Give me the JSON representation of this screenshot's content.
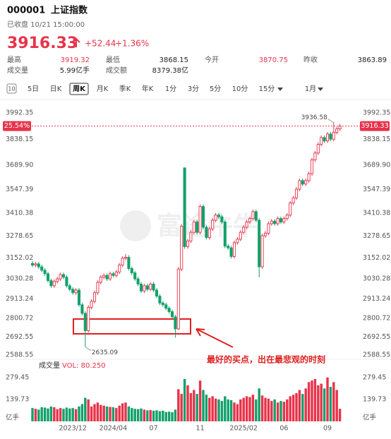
{
  "header": {
    "code": "000001",
    "name": "上证指数",
    "status": "已收盘 10/21 15:00:00",
    "price": "3916.33",
    "change": "+52.44",
    "change_pct": "+1.36%",
    "color": "#e8334a"
  },
  "stats": [
    {
      "label": "最高",
      "value": "3919.32",
      "color": "#e8334a"
    },
    {
      "label": "最低",
      "value": "3868.15",
      "color": "#222222"
    },
    {
      "label": "今开",
      "value": "3870.75",
      "color": "#e8334a"
    },
    {
      "label": "昨收",
      "value": "3863.89",
      "color": "#222222"
    },
    {
      "label": "成交量",
      "value": "5.99亿手",
      "color": "#222222"
    },
    {
      "label": "成交额",
      "value": "8379.38亿",
      "color": "#222222"
    }
  ],
  "tab_icon_label": "10",
  "tabs": [
    "5日",
    "日K",
    "周K",
    "月K",
    "季K",
    "年K",
    "1分",
    "3分",
    "5分",
    "10分",
    "15分",
    "1月"
  ],
  "active_tab": "周K",
  "chart_data": {
    "type": "candlestick",
    "up_color": "#e8334a",
    "down_color": "#14a06b",
    "grid": false,
    "watermark": "富途牛牛",
    "current_pct_label": "25.54%",
    "annotation": "最好的买点，出在最悲观的时刻",
    "categories": [
      null,
      null,
      null,
      null,
      null,
      null,
      null,
      null,
      null,
      null,
      null,
      null,
      null,
      "2023/12",
      null,
      null,
      null,
      null,
      null,
      null,
      null,
      null,
      null,
      null,
      null,
      null,
      "2024/04",
      null,
      null,
      null,
      null,
      null,
      null,
      null,
      null,
      null,
      null,
      null,
      null,
      "07",
      null,
      null,
      null,
      null,
      null,
      null,
      null,
      null,
      null,
      null,
      null,
      null,
      null,
      null,
      "11",
      null,
      null,
      null,
      null,
      null,
      null,
      null,
      null,
      null,
      null,
      null,
      null,
      null,
      "2025/02",
      null,
      null,
      null,
      null,
      null,
      null,
      null,
      null,
      null,
      null,
      null,
      null,
      "06",
      null,
      null,
      null,
      null,
      null,
      null,
      null,
      null,
      null,
      null,
      null,
      null,
      null,
      "09",
      null,
      null,
      null,
      null
    ],
    "open": [
      3120,
      3110,
      3117,
      3100,
      3080,
      3060,
      3020,
      2990,
      3015,
      3030,
      3055,
      3040,
      2990,
      2970,
      2950,
      2965,
      2880,
      2830,
      2730,
      2865,
      2900,
      2950,
      3010,
      3040,
      3050,
      3030,
      3060,
      3050,
      3070,
      3110,
      3150,
      3155,
      3090,
      3065,
      3030,
      3000,
      2960,
      2990,
      2970,
      3000,
      2965,
      2930,
      2890,
      2880,
      2860,
      2840,
      2810,
      2740,
      3087,
      3674,
      3217,
      3250,
      3300,
      3360,
      3300,
      3450,
      3330,
      3270,
      3320,
      3370,
      3400,
      3390,
      3360,
      3220,
      3210,
      3160,
      3240,
      3260,
      3300,
      3330,
      3360,
      3380,
      3420,
      3370,
      3100,
      3280,
      3295,
      3350,
      3365,
      3350,
      3380,
      3360,
      3380,
      3400,
      3470,
      3500,
      3550,
      3600,
      3580,
      3600,
      3640,
      3720,
      3760,
      3810,
      3850,
      3830,
      3870,
      3840,
      3880,
      3900
    ],
    "high": [
      3132,
      3129,
      3129,
      3112,
      3092,
      3072,
      3032,
      3027,
      3042,
      3067,
      3067,
      3052,
      3002,
      2982,
      2977,
      2977,
      2892,
      2842,
      2877,
      2912,
      2962,
      3022,
      3052,
      3062,
      3062,
      3072,
      3072,
      3082,
      3122,
      3162,
      3174,
      3167,
      3102,
      3077,
      3042,
      3012,
      3002,
      3002,
      3012,
      3012,
      2977,
      2942,
      2902,
      2892,
      2872,
      2852,
      2822,
      3099,
      3348,
      3674,
      3262,
      3312,
      3372,
      3372,
      3462,
      3462,
      3342,
      3332,
      3382,
      3412,
      3412,
      3402,
      3372,
      3232,
      3222,
      3252,
      3272,
      3312,
      3342,
      3372,
      3392,
      3432,
      3432,
      3382,
      3292,
      3307,
      3362,
      3377,
      3377,
      3392,
      3392,
      3392,
      3412,
      3482,
      3512,
      3562,
      3612,
      3612,
      3612,
      3652,
      3732,
      3772,
      3822,
      3862,
      3862,
      3882,
      3882,
      3936.58,
      3912,
      3928
    ],
    "low": [
      3098,
      3098,
      3088,
      3068,
      3048,
      3008,
      2978,
      2978,
      3003,
      3018,
      3028,
      2978,
      2958,
      2938,
      2938,
      2868,
      2818,
      2635.09,
      2718,
      2853,
      2888,
      2938,
      2998,
      3028,
      3018,
      3018,
      3038,
      3038,
      3058,
      3098,
      3138,
      3078,
      3053,
      3018,
      2988,
      2948,
      2948,
      2958,
      2958,
      2953,
      2918,
      2878,
      2868,
      2848,
      2828,
      2798,
      2689,
      2734,
      3075,
      3205,
      3205,
      3238,
      3288,
      3288,
      3288,
      3318,
      3258,
      3258,
      3308,
      3358,
      3378,
      3348,
      3208,
      3198,
      3148,
      3148,
      3228,
      3248,
      3288,
      3318,
      3348,
      3368,
      3358,
      3040,
      3088,
      3268,
      3283,
      3338,
      3338,
      3338,
      3348,
      3348,
      3368,
      3388,
      3458,
      3488,
      3538,
      3568,
      3568,
      3588,
      3628,
      3708,
      3748,
      3798,
      3818,
      3818,
      3828,
      3828,
      3868,
      3888
    ],
    "close": [
      3110,
      3117,
      3100,
      3080,
      3060,
      3020,
      2990,
      3015,
      3030,
      3055,
      3040,
      2990,
      2970,
      2950,
      2965,
      2880,
      2830,
      2730,
      2865,
      2900,
      2950,
      3010,
      3040,
      3050,
      3030,
      3060,
      3050,
      3070,
      3110,
      3150,
      3155,
      3090,
      3065,
      3030,
      3000,
      2960,
      2990,
      2970,
      3000,
      2965,
      2930,
      2890,
      2880,
      2860,
      2840,
      2810,
      2740,
      3087,
      3336,
      3217,
      3250,
      3300,
      3360,
      3300,
      3450,
      3330,
      3270,
      3320,
      3370,
      3400,
      3390,
      3360,
      3220,
      3210,
      3160,
      3240,
      3260,
      3300,
      3330,
      3360,
      3380,
      3420,
      3370,
      3100,
      3280,
      3295,
      3350,
      3365,
      3350,
      3380,
      3360,
      3380,
      3400,
      3470,
      3500,
      3550,
      3600,
      3580,
      3600,
      3640,
      3720,
      3760,
      3810,
      3850,
      3830,
      3870,
      3840,
      3880,
      3900,
      3916.33
    ],
    "ylim": [
      2588.55,
      3992.35
    ],
    "yticks": [
      3992.35,
      3838.15,
      {
        "value": 3689.9,
        "label": "3689.90"
      },
      3547.39,
      3410.38,
      3278.65,
      3152.02,
      3030.28,
      2913.24,
      2800.72,
      2692.55,
      2588.55
    ],
    "volume": {
      "label": "成交量",
      "caption": "VOL: 80.250",
      "values": [
        85,
        80,
        75,
        90,
        88,
        82,
        95,
        90,
        78,
        85,
        80,
        88,
        82,
        85,
        78,
        95,
        110,
        150,
        140,
        95,
        110,
        120,
        105,
        100,
        95,
        92,
        90,
        85,
        100,
        115,
        120,
        95,
        85,
        80,
        78,
        82,
        75,
        70,
        72,
        68,
        70,
        65,
        68,
        60,
        62,
        58,
        75,
        205,
        175,
        270,
        230,
        180,
        200,
        175,
        260,
        200,
        170,
        150,
        160,
        145,
        140,
        130,
        160,
        140,
        135,
        120,
        110,
        140,
        150,
        160,
        155,
        170,
        140,
        210,
        165,
        150,
        145,
        130,
        140,
        120,
        130,
        125,
        140,
        160,
        170,
        180,
        200,
        175,
        210,
        250,
        260,
        270,
        230,
        240,
        210,
        280,
        220,
        250,
        200,
        80.25
      ],
      "ylim": [
        0,
        315
      ],
      "yticks": [
        279.45,
        139.73,
        {
          "value": 0,
          "label": "亿手"
        }
      ]
    }
  }
}
